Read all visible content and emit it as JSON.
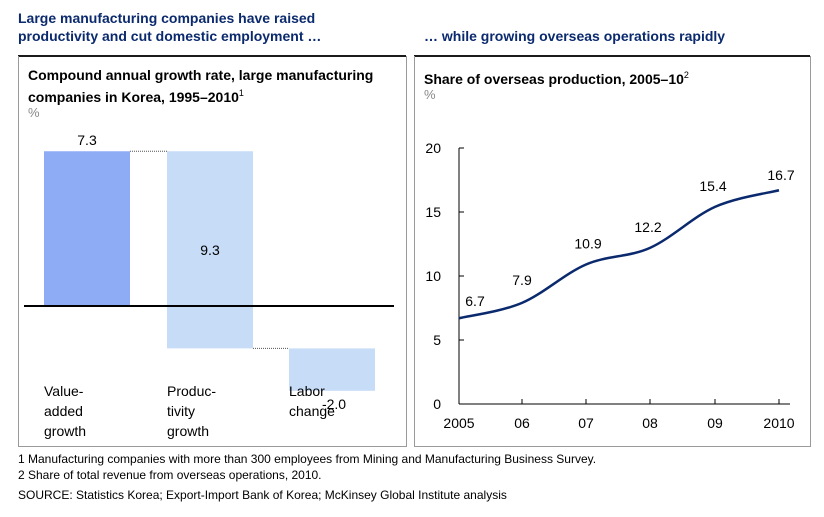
{
  "headers": {
    "left": "Large manufacturing companies have raised productivity and cut domestic employment …",
    "right": "… while growing overseas operations rapidly"
  },
  "waterfall": {
    "title": "Compound annual growth rate, large manufacturing companies in Korea, 1995–2010",
    "title_note": "1",
    "unit": "%",
    "colors": {
      "value_added": "#8eacf5",
      "others": "#c7dcf7",
      "baseline": "#000000"
    }
  },
  "line": {
    "title": "Share of overseas production, 2005–10",
    "title_note": "2",
    "unit": "%",
    "color": "#0b2a6e"
  },
  "chart_data": [
    {
      "type": "bar",
      "subtype": "waterfall",
      "categories": [
        "Value-added growth",
        "Productivity growth",
        "Labor change"
      ],
      "category_lines": [
        [
          "Value-",
          "added",
          "growth"
        ],
        [
          "Produc-",
          "tivity",
          "growth"
        ],
        [
          "Labor",
          "change"
        ]
      ],
      "values": [
        7.3,
        -9.3,
        -2.0
      ],
      "labels": [
        "7.3",
        "9.3",
        "-2.0"
      ],
      "ylabel": "%"
    },
    {
      "type": "line",
      "x": [
        "2005",
        "06",
        "07",
        "08",
        "09",
        "2010"
      ],
      "y": [
        6.7,
        7.9,
        10.9,
        12.2,
        15.4,
        16.7
      ],
      "labels": [
        "6.7",
        "7.9",
        "10.9",
        "12.2",
        "15.4",
        "16.7"
      ],
      "yticks": [
        0,
        5,
        10,
        15,
        20
      ],
      "ylim": [
        0,
        20
      ],
      "ylabel": "%"
    }
  ],
  "footnotes": [
    "1  Manufacturing companies with more than 300 employees from Mining and Manufacturing Business Survey.",
    "2  Share of total revenue from overseas operations, 2010."
  ],
  "source": "SOURCE: Statistics Korea; Export-Import Bank of Korea; McKinsey Global Institute analysis"
}
